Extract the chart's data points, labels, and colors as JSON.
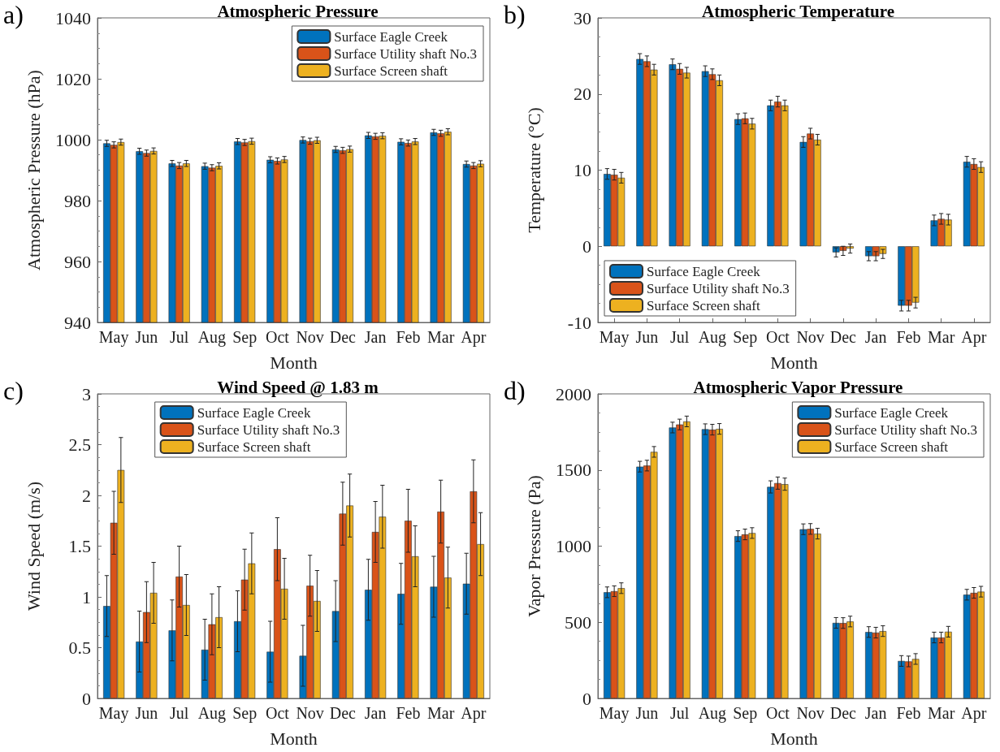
{
  "chart_data": [
    {
      "type": "bar",
      "title": "Atmospheric Pressure",
      "xlabel": "Month",
      "ylabel": "Atmospheric Pressure (hPa)",
      "annotations": [
        "a)"
      ],
      "categories": [
        "May",
        "Jun",
        "Jul",
        "Aug",
        "Sep",
        "Oct",
        "Nov",
        "Dec",
        "Jan",
        "Feb",
        "Mar",
        "Apr"
      ],
      "ylim": [
        940,
        1040
      ],
      "yticks": [
        940,
        960,
        980,
        1000,
        1020,
        1040
      ],
      "grid": false,
      "legend": "top right",
      "series": [
        {
          "name": "Surface Eagle Creek",
          "color": "#0072bd",
          "values": [
            998.8,
            996.2,
            992.2,
            991.3,
            999.4,
            993.4,
            999.9,
            996.8,
            1001.4,
            999.3,
            1002.4,
            992.0
          ],
          "errors": [
            1,
            1,
            1,
            1,
            1,
            1,
            1,
            1,
            1,
            1,
            1,
            1
          ]
        },
        {
          "name": "Surface Utility shaft No.3",
          "color": "#d95319",
          "values": [
            998.3,
            995.6,
            991.5,
            990.8,
            999.1,
            993.0,
            999.5,
            996.5,
            1001.1,
            998.9,
            1002.1,
            991.5
          ],
          "errors": [
            1,
            1,
            1,
            1,
            1,
            1,
            1,
            1,
            1,
            1,
            1,
            1
          ]
        },
        {
          "name": "Surface Screen shaft",
          "color": "#edb120",
          "values": [
            999.2,
            996.3,
            992.2,
            991.4,
            999.5,
            993.5,
            999.8,
            996.9,
            1001.3,
            999.4,
            1002.6,
            992.1
          ],
          "errors": [
            1,
            1,
            1,
            1,
            1,
            1,
            1,
            1,
            1,
            1,
            1,
            1
          ]
        }
      ]
    },
    {
      "type": "bar",
      "title": "Atmospheric Temperature",
      "xlabel": "Month",
      "ylabel": "Temperature (°C)",
      "annotations": [
        "b)"
      ],
      "categories": [
        "May",
        "Jun",
        "Jul",
        "Aug",
        "Sep",
        "Oct",
        "Nov",
        "Dec",
        "Jan",
        "Feb",
        "Mar",
        "Apr"
      ],
      "ylim": [
        -10,
        30
      ],
      "yticks": [
        -10,
        0,
        10,
        20,
        30
      ],
      "grid": false,
      "legend": "bottom left",
      "series": [
        {
          "name": "Surface Eagle Creek",
          "color": "#0072bd",
          "values": [
            9.5,
            24.6,
            23.9,
            23.0,
            16.7,
            18.5,
            13.7,
            -0.8,
            -1.3,
            -7.8,
            3.4,
            11.1
          ],
          "errors": [
            0.7,
            0.7,
            0.7,
            0.7,
            0.7,
            0.7,
            0.7,
            0.6,
            0.6,
            0.7,
            0.7,
            0.7
          ]
        },
        {
          "name": "Surface Utility shaft No.3",
          "color": "#d95319",
          "values": [
            9.4,
            24.3,
            23.3,
            22.6,
            16.8,
            19.0,
            14.8,
            -0.6,
            -1.3,
            -7.8,
            3.6,
            10.8
          ],
          "errors": [
            0.7,
            0.7,
            0.7,
            0.7,
            0.7,
            0.7,
            0.7,
            0.6,
            0.6,
            0.7,
            0.7,
            0.7
          ]
        },
        {
          "name": "Surface Screen shaft",
          "color": "#edb120",
          "values": [
            9.0,
            23.2,
            22.8,
            21.8,
            16.1,
            18.5,
            14.0,
            -0.3,
            -1.0,
            -7.4,
            3.5,
            10.4
          ],
          "errors": [
            0.7,
            0.7,
            0.7,
            0.7,
            0.7,
            0.7,
            0.7,
            0.6,
            0.6,
            0.7,
            0.7,
            0.7
          ]
        }
      ]
    },
    {
      "type": "bar",
      "title": "Wind Speed @ 1.83 m",
      "xlabel": "Month",
      "ylabel": "Wind Speed (m/s)",
      "annotations": [
        "c)"
      ],
      "categories": [
        "May",
        "Jun",
        "Jul",
        "Aug",
        "Sep",
        "Oct",
        "Nov",
        "Dec",
        "Jan",
        "Feb",
        "Mar",
        "Apr"
      ],
      "ylim": [
        0,
        3
      ],
      "yticks": [
        0,
        0.5,
        1,
        1.5,
        2,
        2.5,
        3
      ],
      "grid": false,
      "legend": "top",
      "series": [
        {
          "name": "Surface Eagle Creek",
          "color": "#0072bd",
          "values": [
            0.91,
            0.56,
            0.67,
            0.48,
            0.76,
            0.46,
            0.42,
            0.86,
            1.07,
            1.03,
            1.1,
            1.13
          ],
          "errors": [
            0.3,
            0.3,
            0.3,
            0.3,
            0.3,
            0.3,
            0.3,
            0.3,
            0.3,
            0.3,
            0.3,
            0.3
          ]
        },
        {
          "name": "Surface Utility shaft No.3",
          "color": "#d95319",
          "values": [
            1.73,
            0.85,
            1.2,
            0.73,
            1.17,
            1.47,
            1.11,
            1.82,
            1.64,
            1.75,
            1.84,
            2.04
          ],
          "errors": [
            0.31,
            0.3,
            0.3,
            0.3,
            0.3,
            0.31,
            0.3,
            0.31,
            0.3,
            0.31,
            0.31,
            0.31
          ]
        },
        {
          "name": "Surface Screen shaft",
          "color": "#edb120",
          "values": [
            2.25,
            1.04,
            0.92,
            0.8,
            1.33,
            1.08,
            0.96,
            1.9,
            1.79,
            1.4,
            1.19,
            1.52
          ],
          "errors": [
            0.32,
            0.3,
            0.3,
            0.3,
            0.3,
            0.3,
            0.3,
            0.31,
            0.31,
            0.3,
            0.3,
            0.31
          ]
        }
      ]
    },
    {
      "type": "bar",
      "title": "Atmospheric Vapor Pressure",
      "xlabel": "Month",
      "ylabel": "Vapor Pressure (Pa)",
      "annotations": [
        "d)"
      ],
      "categories": [
        "May",
        "Jun",
        "Jul",
        "Aug",
        "Sep",
        "Oct",
        "Nov",
        "Dec",
        "Jan",
        "Feb",
        "Mar",
        "Apr"
      ],
      "ylim": [
        0,
        2000
      ],
      "yticks": [
        0,
        500,
        1000,
        1500,
        2000
      ],
      "grid": false,
      "legend": "top right",
      "series": [
        {
          "name": "Surface Eagle Creek",
          "color": "#0072bd",
          "values": [
            697,
            1522,
            1779,
            1768,
            1066,
            1389,
            1111,
            496,
            436,
            246,
            400,
            681
          ],
          "errors": [
            35,
            35,
            35,
            35,
            35,
            40,
            35,
            35,
            35,
            35,
            35,
            35
          ]
        },
        {
          "name": "Surface Utility shaft No.3",
          "color": "#d95319",
          "values": [
            704,
            1529,
            1799,
            1765,
            1077,
            1414,
            1113,
            495,
            432,
            243,
            400,
            693
          ],
          "errors": [
            35,
            35,
            35,
            35,
            35,
            40,
            35,
            35,
            35,
            35,
            35,
            35
          ]
        },
        {
          "name": "Surface Screen shaft",
          "color": "#edb120",
          "values": [
            724,
            1619,
            1819,
            1770,
            1086,
            1407,
            1082,
            505,
            442,
            259,
            438,
            701
          ],
          "errors": [
            35,
            35,
            35,
            35,
            35,
            40,
            35,
            35,
            35,
            35,
            35,
            35
          ]
        }
      ]
    }
  ]
}
